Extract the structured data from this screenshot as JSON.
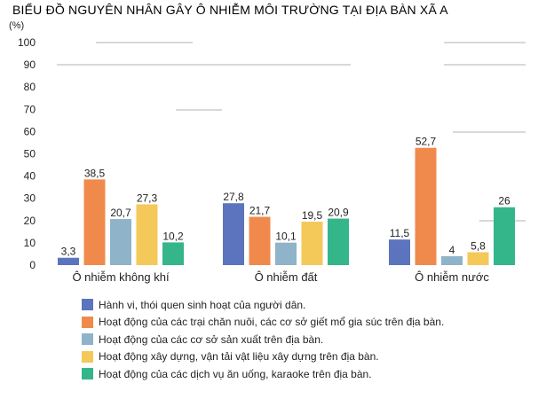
{
  "chart_data": {
    "type": "bar",
    "title": "BIỂU ĐỒ NGUYÊN NHÂN GÂY Ô NHIỄM MÔI TRƯỜNG TẠI ĐỊA BÀN XÃ A",
    "ylabel": "(%)",
    "xlabel": "",
    "ylim": [
      0,
      100
    ],
    "yticks": [
      "0",
      "10",
      "20",
      "30",
      "40",
      "50",
      "60",
      "70",
      "80",
      "90",
      "100"
    ],
    "grid": false,
    "legend_position": "bottom",
    "categories": [
      "Ô nhiễm không khí",
      "Ô nhiễm đất",
      "Ô nhiễm nước"
    ],
    "series": [
      {
        "name": "Hành vi, thói quen sinh hoạt của người dân.",
        "color": "#5b74bd",
        "values": [
          3.3,
          27.8,
          11.5
        ],
        "labels": [
          "3,3",
          "27,8",
          "11,5"
        ]
      },
      {
        "name": "Hoạt động của các trại chăn nuôi, các cơ sở giết mổ gia súc trên địa bàn.",
        "color": "#f08a4c",
        "values": [
          38.5,
          21.7,
          52.7
        ],
        "labels": [
          "38,5",
          "21,7",
          "52,7"
        ]
      },
      {
        "name": "Hoạt động của các cơ sở sản xuất trên địa bàn.",
        "color": "#8fb3c9",
        "values": [
          20.7,
          10.1,
          4
        ],
        "labels": [
          "20,7",
          "10,1",
          "4"
        ]
      },
      {
        "name": "Hoạt động xây dựng, vận tải vật liệu xây dựng trên địa bàn.",
        "color": "#f5c85a",
        "values": [
          27.3,
          19.5,
          5.8
        ],
        "labels": [
          "27,3",
          "19,5",
          "5,8"
        ]
      },
      {
        "name": "Hoạt động của các dịch vụ ăn uống, karaoke trên địa bàn.",
        "color": "#35b58a",
        "values": [
          10.2,
          20.9,
          26
        ],
        "labels": [
          "10,2",
          "20,9",
          "26"
        ]
      }
    ]
  }
}
